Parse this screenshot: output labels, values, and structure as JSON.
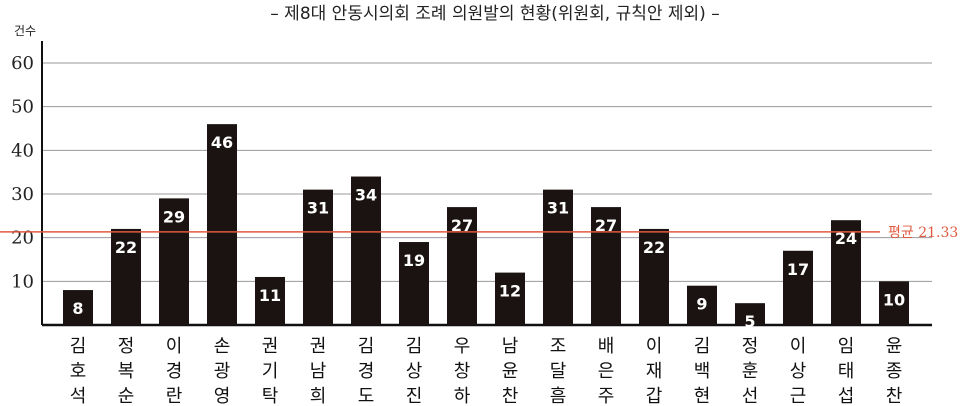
{
  "chart_data": {
    "type": "bar",
    "title": "– 제8대 안동시의회 조례 의원발의 현황(위원회, 규칙안 제외) –",
    "ylabel": "건수",
    "xlabel": "",
    "ylim": [
      0,
      60
    ],
    "yticks": [
      10,
      20,
      30,
      40,
      50,
      60
    ],
    "grid": true,
    "categories": [
      [
        "김",
        "호",
        "석"
      ],
      [
        "정",
        "복",
        "순"
      ],
      [
        "이",
        "경",
        "란"
      ],
      [
        "손",
        "광",
        "영"
      ],
      [
        "권",
        "기",
        "탁"
      ],
      [
        "권",
        "남",
        "희"
      ],
      [
        "김",
        "경",
        "도"
      ],
      [
        "김",
        "상",
        "진"
      ],
      [
        "우",
        "창",
        "하"
      ],
      [
        "남",
        "윤",
        "찬"
      ],
      [
        "조",
        "달",
        "흠"
      ],
      [
        "배",
        "은",
        "주"
      ],
      [
        "이",
        "재",
        "갑"
      ],
      [
        "김",
        "백",
        "현"
      ],
      [
        "정",
        "훈",
        "선"
      ],
      [
        "이",
        "상",
        "근"
      ],
      [
        "임",
        "태",
        "섭"
      ],
      [
        "윤",
        "종",
        "찬"
      ]
    ],
    "values": [
      8,
      22,
      29,
      46,
      11,
      31,
      34,
      19,
      27,
      12,
      31,
      27,
      22,
      9,
      5,
      17,
      24,
      10
    ],
    "average": 21.33,
    "average_label": "평균 21.33",
    "colors": {
      "bar": "#1a1311",
      "average_line": "#e05a3f",
      "grid": "#9a9a9a"
    }
  }
}
